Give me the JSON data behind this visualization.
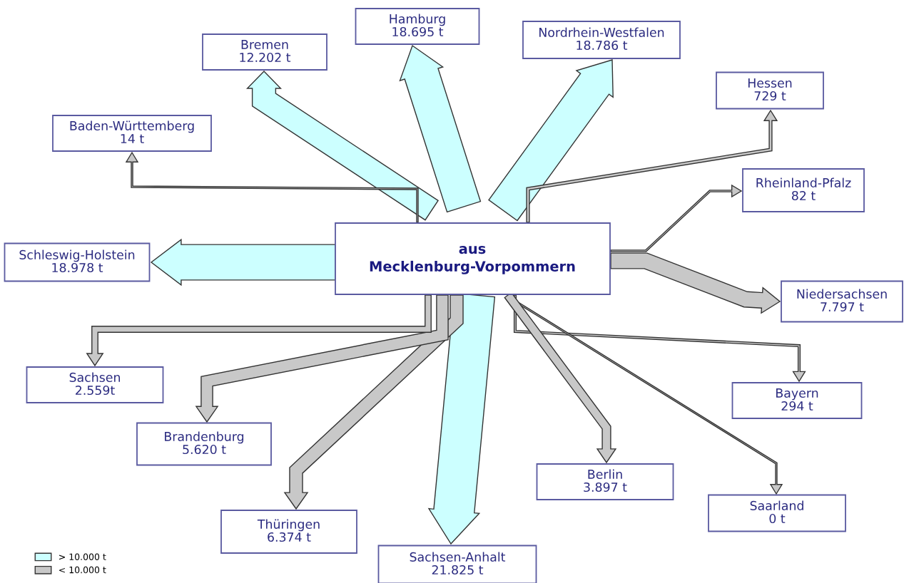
{
  "chart_data": {
    "type": "other",
    "title": "aus\nMecklenburg-Vorpommern",
    "categories": [
      "Baden-Württemberg",
      "Bremen",
      "Hamburg",
      "Nordrhein-Westfalen",
      "Hessen",
      "Rheinland-Pfalz",
      "Niedersachsen",
      "Bayern",
      "Saarland",
      "Berlin",
      "Sachsen-Anhalt",
      "Thüringen",
      "Brandenburg",
      "Sachsen",
      "Schleswig-Holstein"
    ],
    "series": [
      {
        "name": "> 10.000 t",
        "color": "#ccffff",
        "values": [
          null,
          12202,
          18695,
          18786,
          null,
          null,
          null,
          null,
          null,
          null,
          21825,
          null,
          null,
          null,
          18978
        ],
        "value_labels": [
          null,
          "12.202 t",
          "18.695 t",
          "18.786 t",
          null,
          null,
          null,
          null,
          null,
          null,
          "21.825 t",
          null,
          null,
          null,
          "18.978 t"
        ]
      },
      {
        "name": "< 10.000 t",
        "color": "#c8c8c8",
        "values": [
          14,
          null,
          null,
          null,
          729,
          82,
          7797,
          294,
          0,
          3897,
          null,
          6374,
          5620,
          2559,
          null
        ],
        "value_labels": [
          "14 t",
          null,
          null,
          null,
          "729 t",
          "82 t",
          "7.797 t",
          "294 t",
          "0 t",
          "3.897 t",
          null,
          "6.374 t",
          "5.620 t",
          "2.559t",
          null
        ]
      }
    ],
    "legend": "bottom left"
  }
}
